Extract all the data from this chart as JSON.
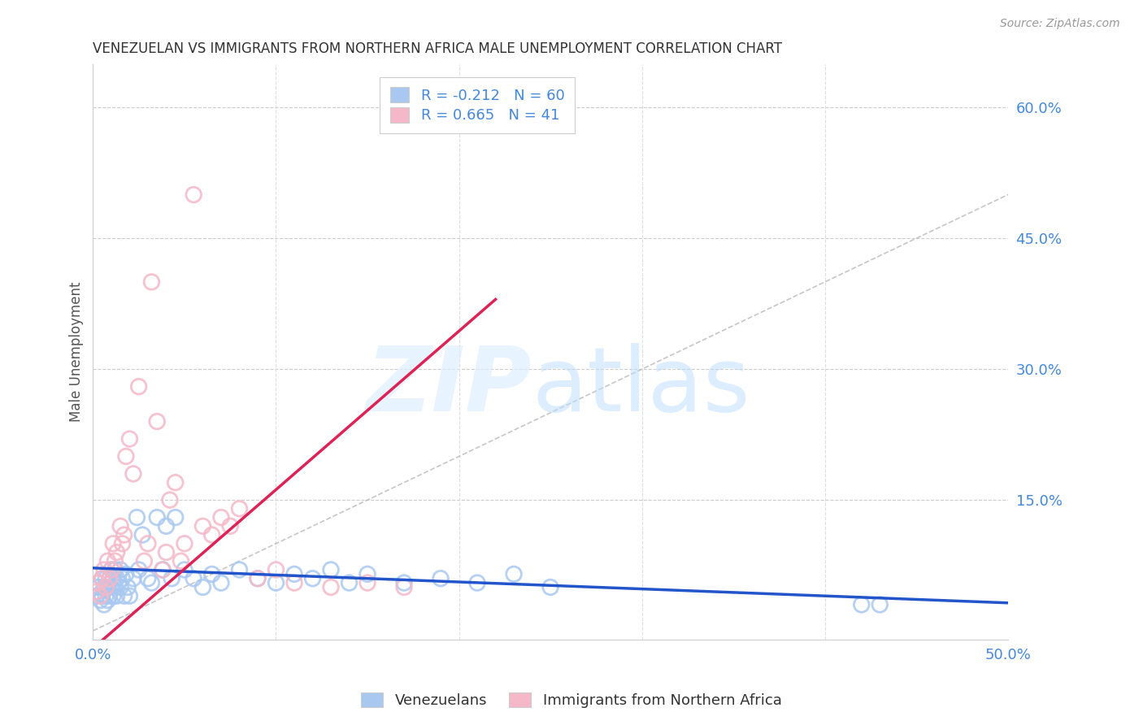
{
  "title": "VENEZUELAN VS IMMIGRANTS FROM NORTHERN AFRICA MALE UNEMPLOYMENT CORRELATION CHART",
  "source": "Source: ZipAtlas.com",
  "ylabel": "Male Unemployment",
  "xlim": [
    0.0,
    0.5
  ],
  "ylim": [
    -0.01,
    0.65
  ],
  "yticks_right": [
    0.15,
    0.3,
    0.45,
    0.6
  ],
  "ytick_labels_right": [
    "15.0%",
    "30.0%",
    "45.0%",
    "60.0%"
  ],
  "blue_color": "#a8c8f0",
  "pink_color": "#f5b8c8",
  "blue_line_color": "#2255cc",
  "pink_line_color": "#dd2255",
  "legend_R_blue": "-0.212",
  "legend_N_blue": "60",
  "legend_R_pink": "0.665",
  "legend_N_pink": "41",
  "blue_scatter_x": [
    0.002,
    0.003,
    0.004,
    0.005,
    0.005,
    0.006,
    0.006,
    0.007,
    0.007,
    0.008,
    0.008,
    0.009,
    0.009,
    0.01,
    0.01,
    0.011,
    0.011,
    0.012,
    0.012,
    0.013,
    0.013,
    0.014,
    0.015,
    0.015,
    0.016,
    0.017,
    0.018,
    0.019,
    0.02,
    0.022,
    0.024,
    0.025,
    0.027,
    0.03,
    0.032,
    0.035,
    0.038,
    0.04,
    0.043,
    0.045,
    0.05,
    0.055,
    0.06,
    0.065,
    0.07,
    0.08,
    0.09,
    0.1,
    0.11,
    0.12,
    0.13,
    0.14,
    0.15,
    0.17,
    0.19,
    0.21,
    0.23,
    0.25,
    0.42,
    0.43
  ],
  "blue_scatter_y": [
    0.04,
    0.05,
    0.035,
    0.06,
    0.04,
    0.05,
    0.03,
    0.06,
    0.04,
    0.05,
    0.035,
    0.06,
    0.04,
    0.07,
    0.05,
    0.06,
    0.04,
    0.07,
    0.05,
    0.06,
    0.04,
    0.055,
    0.07,
    0.05,
    0.06,
    0.04,
    0.065,
    0.05,
    0.04,
    0.06,
    0.13,
    0.07,
    0.11,
    0.06,
    0.055,
    0.13,
    0.07,
    0.12,
    0.06,
    0.13,
    0.07,
    0.06,
    0.05,
    0.065,
    0.055,
    0.07,
    0.06,
    0.055,
    0.065,
    0.06,
    0.07,
    0.055,
    0.065,
    0.055,
    0.06,
    0.055,
    0.065,
    0.05,
    0.03,
    0.03
  ],
  "pink_scatter_x": [
    0.002,
    0.003,
    0.004,
    0.005,
    0.006,
    0.007,
    0.008,
    0.009,
    0.01,
    0.011,
    0.012,
    0.013,
    0.015,
    0.016,
    0.017,
    0.018,
    0.02,
    0.022,
    0.025,
    0.028,
    0.03,
    0.032,
    0.035,
    0.038,
    0.04,
    0.042,
    0.045,
    0.048,
    0.05,
    0.055,
    0.06,
    0.065,
    0.07,
    0.075,
    0.08,
    0.09,
    0.1,
    0.11,
    0.13,
    0.15,
    0.17
  ],
  "pink_scatter_y": [
    0.045,
    0.055,
    0.04,
    0.06,
    0.07,
    0.05,
    0.08,
    0.06,
    0.07,
    0.1,
    0.08,
    0.09,
    0.12,
    0.1,
    0.11,
    0.2,
    0.22,
    0.18,
    0.28,
    0.08,
    0.1,
    0.4,
    0.24,
    0.07,
    0.09,
    0.15,
    0.17,
    0.08,
    0.1,
    0.5,
    0.12,
    0.11,
    0.13,
    0.12,
    0.14,
    0.06,
    0.07,
    0.055,
    0.05,
    0.055,
    0.05
  ],
  "blue_line_x": [
    0.0,
    0.5
  ],
  "blue_line_y": [
    0.072,
    0.032
  ],
  "pink_line_x": [
    0.0,
    0.22
  ],
  "pink_line_y": [
    -0.02,
    0.38
  ]
}
